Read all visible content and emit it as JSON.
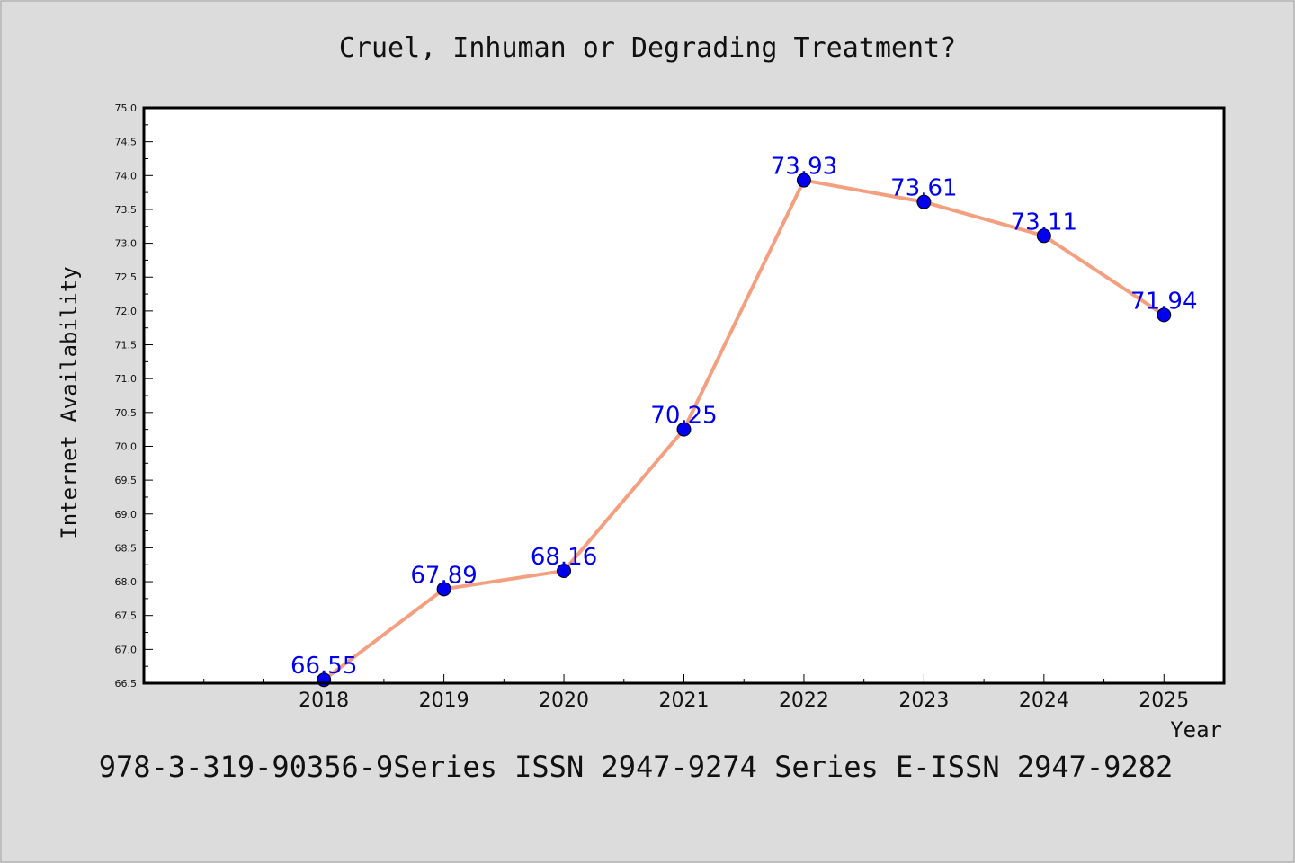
{
  "chart_data": {
    "type": "line",
    "title": "Cruel, Inhuman or Degrading Treatment?",
    "xlabel": "Year",
    "ylabel": "Internet Availability",
    "x": [
      2018,
      2019,
      2020,
      2021,
      2022,
      2023,
      2024,
      2025
    ],
    "x_tick_labels": [
      "2018",
      "2019",
      "2020",
      "2021",
      "2022",
      "2023",
      "2024",
      "2025"
    ],
    "values": [
      66.55,
      67.89,
      68.16,
      70.25,
      73.93,
      73.61,
      73.11,
      71.94
    ],
    "data_labels": [
      "66.55",
      "67.89",
      "68.16",
      "70.25",
      "73.93",
      "73.61",
      "73.11",
      "71.94"
    ],
    "xlim": [
      2016.5,
      2025.5
    ],
    "ylim": [
      66.5,
      75.0
    ],
    "y_ticks": [
      66.5,
      67.0,
      67.5,
      68.0,
      68.5,
      69.0,
      69.5,
      70.0,
      70.5,
      71.0,
      71.5,
      72.0,
      72.5,
      73.0,
      73.5,
      74.0,
      74.5,
      75.0
    ],
    "y_tick_labels": [
      "66.5",
      "67.0",
      "67.5",
      "68.0",
      "68.5",
      "69.0",
      "69.5",
      "70.0",
      "70.5",
      "71.0",
      "71.5",
      "72.0",
      "72.5",
      "73.0",
      "73.5",
      "74.0",
      "74.5",
      "75.0"
    ],
    "grid": false,
    "line_color": "#f4a080",
    "marker_color": "#0000ee",
    "label_color": "#0000ee",
    "plot_background": "#ffffff",
    "figure_background": "#dcdcdc"
  },
  "footer": {
    "text": "978-3-319-90356-9Series ISSN 2947-9274 Series E-ISSN 2947-9282"
  }
}
